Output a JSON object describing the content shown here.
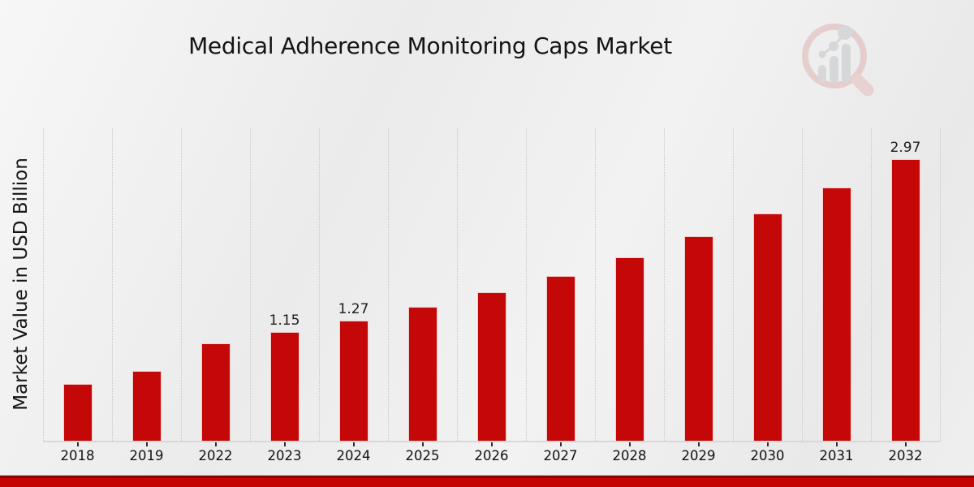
{
  "title": "Medical Adherence Monitoring Caps Market",
  "ylabel": "Market Value in USD Billion",
  "logo_name": "market-research-magnifier-logo",
  "accent_colors": {
    "bar_red": "#c40707",
    "footer_red": "#c40303",
    "gridline_gray": "#c6c6c6"
  },
  "chart_data": {
    "type": "bar",
    "title": "Medical Adherence Monitoring Caps Market",
    "xlabel": "",
    "ylabel": "Market Value in USD Billion",
    "categories": [
      "2018",
      "2019",
      "2022",
      "2023",
      "2024",
      "2025",
      "2026",
      "2027",
      "2028",
      "2029",
      "2030",
      "2031",
      "2032"
    ],
    "values": [
      0.6,
      0.74,
      1.03,
      1.15,
      1.27,
      1.41,
      1.57,
      1.74,
      1.94,
      2.16,
      2.4,
      2.67,
      2.97
    ],
    "data_labels": [
      "",
      "",
      "",
      "1.15",
      "1.27",
      "",
      "",
      "",
      "",
      "",
      "",
      "",
      "2.97"
    ],
    "ylim": [
      0,
      3.3
    ],
    "grid": "vertical-dotted",
    "legend": "none",
    "bar_color": "#c40707",
    "units": "USD Billion"
  }
}
